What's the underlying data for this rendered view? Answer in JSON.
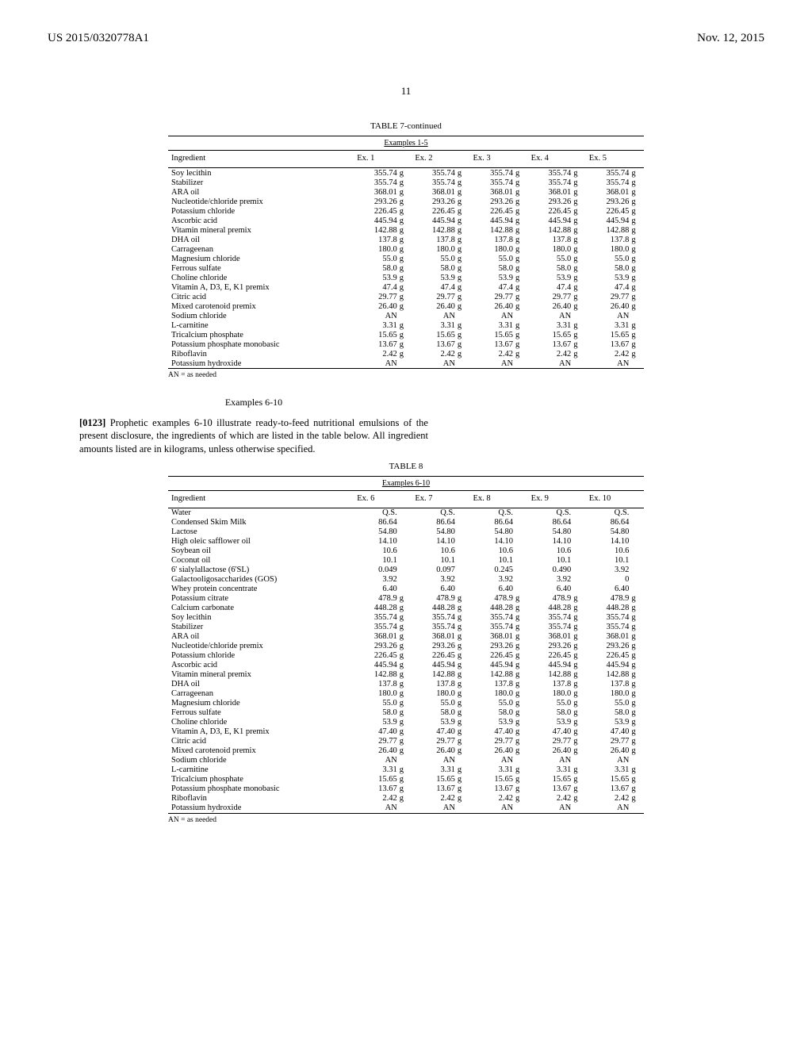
{
  "header": {
    "left": "US 2015/0320778A1",
    "right": "Nov. 12, 2015"
  },
  "page_number": "11",
  "table7": {
    "caption": "TABLE 7-continued",
    "subcaption": "Examples 1-5",
    "col_headers": [
      "Ingredient",
      "Ex. 1",
      "Ex. 2",
      "Ex. 3",
      "Ex. 4",
      "Ex. 5"
    ],
    "rows": [
      [
        "Soy lecithin",
        "355.74",
        "g",
        "355.74",
        "g",
        "355.74",
        "g",
        "355.74",
        "g",
        "355.74",
        "g"
      ],
      [
        "Stabilizer",
        "355.74",
        "g",
        "355.74",
        "g",
        "355.74",
        "g",
        "355.74",
        "g",
        "355.74",
        "g"
      ],
      [
        "ARA oil",
        "368.01",
        "g",
        "368.01",
        "g",
        "368.01",
        "g",
        "368.01",
        "g",
        "368.01",
        "g"
      ],
      [
        "Nucleotide/chloride premix",
        "293.26",
        "g",
        "293.26",
        "g",
        "293.26",
        "g",
        "293.26",
        "g",
        "293.26",
        "g"
      ],
      [
        "Potassium chloride",
        "226.45",
        "g",
        "226.45",
        "g",
        "226.45",
        "g",
        "226.45",
        "g",
        "226.45",
        "g"
      ],
      [
        "Ascorbic acid",
        "445.94",
        "g",
        "445.94",
        "g",
        "445.94",
        "g",
        "445.94",
        "g",
        "445.94",
        "g"
      ],
      [
        "Vitamin mineral premix",
        "142.88",
        "g",
        "142.88",
        "g",
        "142.88",
        "g",
        "142.88",
        "g",
        "142.88",
        "g"
      ],
      [
        "DHA oil",
        "137.8",
        "g",
        "137.8",
        "g",
        "137.8",
        "g",
        "137.8",
        "g",
        "137.8",
        "g"
      ],
      [
        "Carrageenan",
        "180.0",
        "g",
        "180.0",
        "g",
        "180.0",
        "g",
        "180.0",
        "g",
        "180.0",
        "g"
      ],
      [
        "Magnesium chloride",
        "55.0",
        "g",
        "55.0",
        "g",
        "55.0",
        "g",
        "55.0",
        "g",
        "55.0",
        "g"
      ],
      [
        "Ferrous sulfate",
        "58.0",
        "g",
        "58.0",
        "g",
        "58.0",
        "g",
        "58.0",
        "g",
        "58.0",
        "g"
      ],
      [
        "Choline chloride",
        "53.9",
        "g",
        "53.9",
        "g",
        "53.9",
        "g",
        "53.9",
        "g",
        "53.9",
        "g"
      ],
      [
        "Vitamin A, D3, E, K1 premix",
        "47.4",
        "g",
        "47.4",
        "g",
        "47.4",
        "g",
        "47.4",
        "g",
        "47.4",
        "g"
      ],
      [
        "Citric acid",
        "29.77",
        "g",
        "29.77",
        "g",
        "29.77",
        "g",
        "29.77",
        "g",
        "29.77",
        "g"
      ],
      [
        "Mixed carotenoid premix",
        "26.40",
        "g",
        "26.40",
        "g",
        "26.40",
        "g",
        "26.40",
        "g",
        "26.40",
        "g"
      ],
      [
        "Sodium chloride",
        "AN",
        "",
        "AN",
        "",
        "AN",
        "",
        "AN",
        "",
        "AN",
        ""
      ],
      [
        "L-carnitine",
        "3.31",
        "g",
        "3.31",
        "g",
        "3.31",
        "g",
        "3.31",
        "g",
        "3.31",
        "g"
      ],
      [
        "Tricalcium phosphate",
        "15.65",
        "g",
        "15.65",
        "g",
        "15.65",
        "g",
        "15.65",
        "g",
        "15.65",
        "g"
      ],
      [
        "Potassium phosphate monobasic",
        "13.67",
        "g",
        "13.67",
        "g",
        "13.67",
        "g",
        "13.67",
        "g",
        "13.67",
        "g"
      ],
      [
        "Riboflavin",
        "2.42",
        "g",
        "2.42",
        "g",
        "2.42",
        "g",
        "2.42",
        "g",
        "2.42",
        "g"
      ],
      [
        "Potassium hydroxide",
        "AN",
        "",
        "AN",
        "",
        "AN",
        "",
        "AN",
        "",
        "AN",
        ""
      ]
    ],
    "footnote": "AN = as needed"
  },
  "examples_heading": "Examples 6-10",
  "para_num": "[0123]",
  "para_text": " Prophetic examples 6-10 illustrate ready-to-feed nutritional emulsions of the present disclosure, the ingredients of which are listed in the table below. All ingredient amounts listed are in kilograms, unless otherwise specified.",
  "table8": {
    "caption": "TABLE 8",
    "subcaption": "Examples 6-10",
    "col_headers": [
      "Ingredient",
      "Ex. 6",
      "Ex. 7",
      "Ex. 8",
      "Ex. 9",
      "Ex. 10"
    ],
    "rows": [
      [
        "Water",
        "Q.S.",
        "",
        "Q.S.",
        "",
        "Q.S.",
        "",
        "Q.S.",
        "",
        "Q.S.",
        ""
      ],
      [
        "Condensed Skim Milk",
        "86.64",
        "",
        "86.64",
        "",
        "86.64",
        "",
        "86.64",
        "",
        "86.64",
        ""
      ],
      [
        "Lactose",
        "54.80",
        "",
        "54.80",
        "",
        "54.80",
        "",
        "54.80",
        "",
        "54.80",
        ""
      ],
      [
        "High oleic safflower oil",
        "14.10",
        "",
        "14.10",
        "",
        "14.10",
        "",
        "14.10",
        "",
        "14.10",
        ""
      ],
      [
        "Soybean oil",
        "10.6",
        "",
        "10.6",
        "",
        "10.6",
        "",
        "10.6",
        "",
        "10.6",
        ""
      ],
      [
        "Coconut oil",
        "10.1",
        "",
        "10.1",
        "",
        "10.1",
        "",
        "10.1",
        "",
        "10.1",
        ""
      ],
      [
        "6' sialylallactose (6'SL)",
        "0.049",
        "",
        "0.097",
        "",
        "0.245",
        "",
        "0.490",
        "",
        "3.92",
        ""
      ],
      [
        "Galactooligosaccharides (GOS)",
        "3.92",
        "",
        "3.92",
        "",
        "3.92",
        "",
        "3.92",
        "",
        "0",
        ""
      ],
      [
        "Whey protein concentrate",
        "6.40",
        "",
        "6.40",
        "",
        "6.40",
        "",
        "6.40",
        "",
        "6.40",
        ""
      ],
      [
        "Potassium citrate",
        "478.9",
        "g",
        "478.9",
        "g",
        "478.9",
        "g",
        "478.9",
        "g",
        "478.9",
        "g"
      ],
      [
        "Calcium carbonate",
        "448.28",
        "g",
        "448.28",
        "g",
        "448.28",
        "g",
        "448.28",
        "g",
        "448.28",
        "g"
      ],
      [
        "Soy lecithin",
        "355.74",
        "g",
        "355.74",
        "g",
        "355.74",
        "g",
        "355.74",
        "g",
        "355.74",
        "g"
      ],
      [
        "Stabilizer",
        "355.74",
        "g",
        "355.74",
        "g",
        "355.74",
        "g",
        "355.74",
        "g",
        "355.74",
        "g"
      ],
      [
        "ARA oil",
        "368.01",
        "g",
        "368.01",
        "g",
        "368.01",
        "g",
        "368.01",
        "g",
        "368.01",
        "g"
      ],
      [
        "Nucleotide/chloride premix",
        "293.26",
        "g",
        "293.26",
        "g",
        "293.26",
        "g",
        "293.26",
        "g",
        "293.26",
        "g"
      ],
      [
        "Potassium chloride",
        "226.45",
        "g",
        "226.45",
        "g",
        "226.45",
        "g",
        "226.45",
        "g",
        "226.45",
        "g"
      ],
      [
        "Ascorbic acid",
        "445.94",
        "g",
        "445.94",
        "g",
        "445.94",
        "g",
        "445.94",
        "g",
        "445.94",
        "g"
      ],
      [
        "Vitamin mineral premix",
        "142.88",
        "g",
        "142.88",
        "g",
        "142.88",
        "g",
        "142.88",
        "g",
        "142.88",
        "g"
      ],
      [
        "DHA oil",
        "137.8",
        "g",
        "137.8",
        "g",
        "137.8",
        "g",
        "137.8",
        "g",
        "137.8",
        "g"
      ],
      [
        "Carrageenan",
        "180.0",
        "g",
        "180.0",
        "g",
        "180.0",
        "g",
        "180.0",
        "g",
        "180.0",
        "g"
      ],
      [
        "Magnesium chloride",
        "55.0",
        "g",
        "55.0",
        "g",
        "55.0",
        "g",
        "55.0",
        "g",
        "55.0",
        "g"
      ],
      [
        "Ferrous sulfate",
        "58.0",
        "g",
        "58.0",
        "g",
        "58.0",
        "g",
        "58.0",
        "g",
        "58.0",
        "g"
      ],
      [
        "Choline chloride",
        "53.9",
        "g",
        "53.9",
        "g",
        "53.9",
        "g",
        "53.9",
        "g",
        "53.9",
        "g"
      ],
      [
        "Vitamin A, D3, E, K1 premix",
        "47.40",
        "g",
        "47.40",
        "g",
        "47.40",
        "g",
        "47.40",
        "g",
        "47.40",
        "g"
      ],
      [
        "Citric acid",
        "29.77",
        "g",
        "29.77",
        "g",
        "29.77",
        "g",
        "29.77",
        "g",
        "29.77",
        "g"
      ],
      [
        "Mixed carotenoid premix",
        "26.40",
        "g",
        "26.40",
        "g",
        "26.40",
        "g",
        "26.40",
        "g",
        "26.40",
        "g"
      ],
      [
        "Sodium chloride",
        "AN",
        "",
        "AN",
        "",
        "AN",
        "",
        "AN",
        "",
        "AN",
        ""
      ],
      [
        "L-carnitine",
        "3.31",
        "g",
        "3.31",
        "g",
        "3.31",
        "g",
        "3.31",
        "g",
        "3.31",
        "g"
      ],
      [
        "Tricalcium phosphate",
        "15.65",
        "g",
        "15.65",
        "g",
        "15.65",
        "g",
        "15.65",
        "g",
        "15.65",
        "g"
      ],
      [
        "Potassium phosphate monobasic",
        "13.67",
        "g",
        "13.67",
        "g",
        "13.67",
        "g",
        "13.67",
        "g",
        "13.67",
        "g"
      ],
      [
        "Riboflavin",
        "2.42",
        "g",
        "2.42",
        "g",
        "2.42",
        "g",
        "2.42",
        "g",
        "2.42",
        "g"
      ],
      [
        "Potassium hydroxide",
        "AN",
        "",
        "AN",
        "",
        "AN",
        "",
        "AN",
        "",
        "AN",
        ""
      ]
    ],
    "footnote": "AN = as needed"
  }
}
